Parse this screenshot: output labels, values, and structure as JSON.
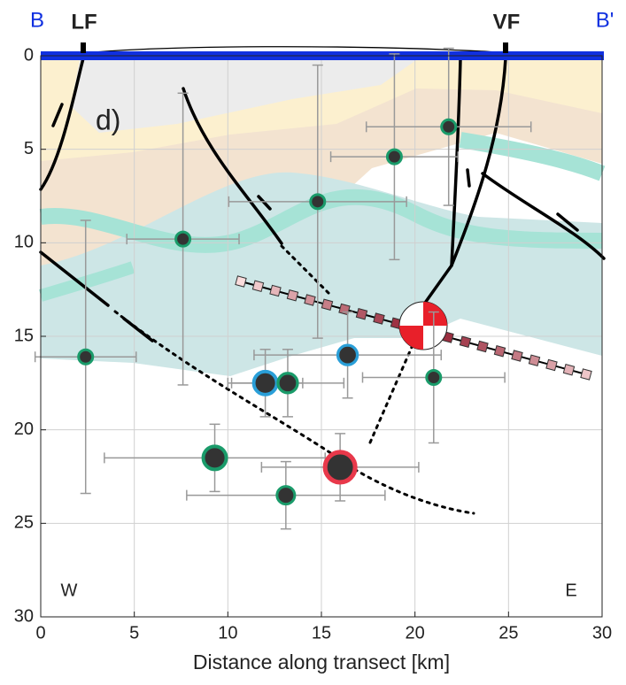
{
  "chart_data": {
    "type": "scatter",
    "xlabel": "Distance along transect [km]",
    "annotations": [
      "B",
      "B'",
      "LF",
      "VF",
      "d)",
      "W",
      "E"
    ],
    "x": [
      21.8,
      18.9,
      14.8,
      7.6,
      2.4,
      16.4,
      12.0,
      13.2,
      21.0,
      9.3,
      16.0,
      13.1
    ],
    "values": [
      3.8,
      5.4,
      7.8,
      9.8,
      16.1,
      16.0,
      17.5,
      17.5,
      17.2,
      21.5,
      22.0,
      23.5
    ],
    "xerr": [
      4.4,
      3.4,
      4.75,
      3.0,
      2.7,
      5.0,
      2.0,
      3.0,
      3.8,
      5.9,
      4.2,
      5.3
    ],
    "yerr": [
      4.2,
      5.5,
      7.3,
      7.8,
      7.3,
      2.3,
      1.8,
      1.8,
      3.5,
      1.8,
      1.8,
      1.8
    ],
    "sizes": [
      8,
      8,
      8,
      8,
      8,
      11,
      13,
      11,
      8,
      13,
      17,
      10
    ],
    "edge_colors": [
      "#1a9b6a",
      "#1a9b6a",
      "#1a9b6a",
      "#1a9b6a",
      "#1a9b6a",
      "#2a9fd8",
      "#2a9fd8",
      "#1a9b6a",
      "#1a9b6a",
      "#1a9b6a",
      "#e8384a",
      "#1a9b6a"
    ],
    "fill_color": "#333333",
    "errorbar_color": "#999999",
    "xlim": [
      0,
      30
    ],
    "ylim": [
      0,
      30
    ],
    "xticks": [
      0,
      5,
      10,
      15,
      20,
      25,
      30
    ],
    "yticks": [
      0,
      5,
      10,
      15,
      20,
      25,
      30
    ],
    "y_inverted": true,
    "grid": true
  }
}
